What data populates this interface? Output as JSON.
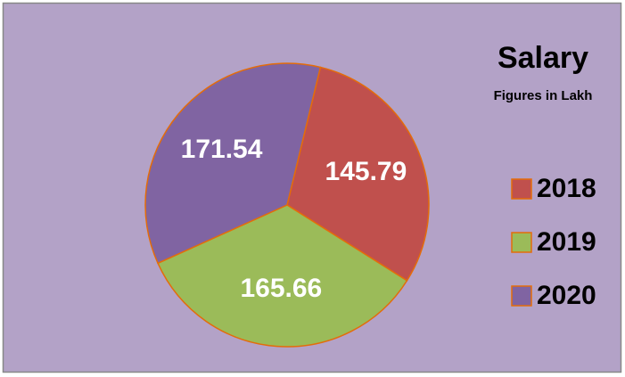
{
  "chart_data": {
    "type": "pie",
    "title": "Salary",
    "subtitle": "Figures in Lakh",
    "categories": [
      "2018",
      "2019",
      "2020"
    ],
    "values": [
      145.79,
      165.66,
      171.54
    ],
    "colors": [
      "#c0504d",
      "#9bbb59",
      "#8064a2"
    ],
    "legend": "right"
  }
}
